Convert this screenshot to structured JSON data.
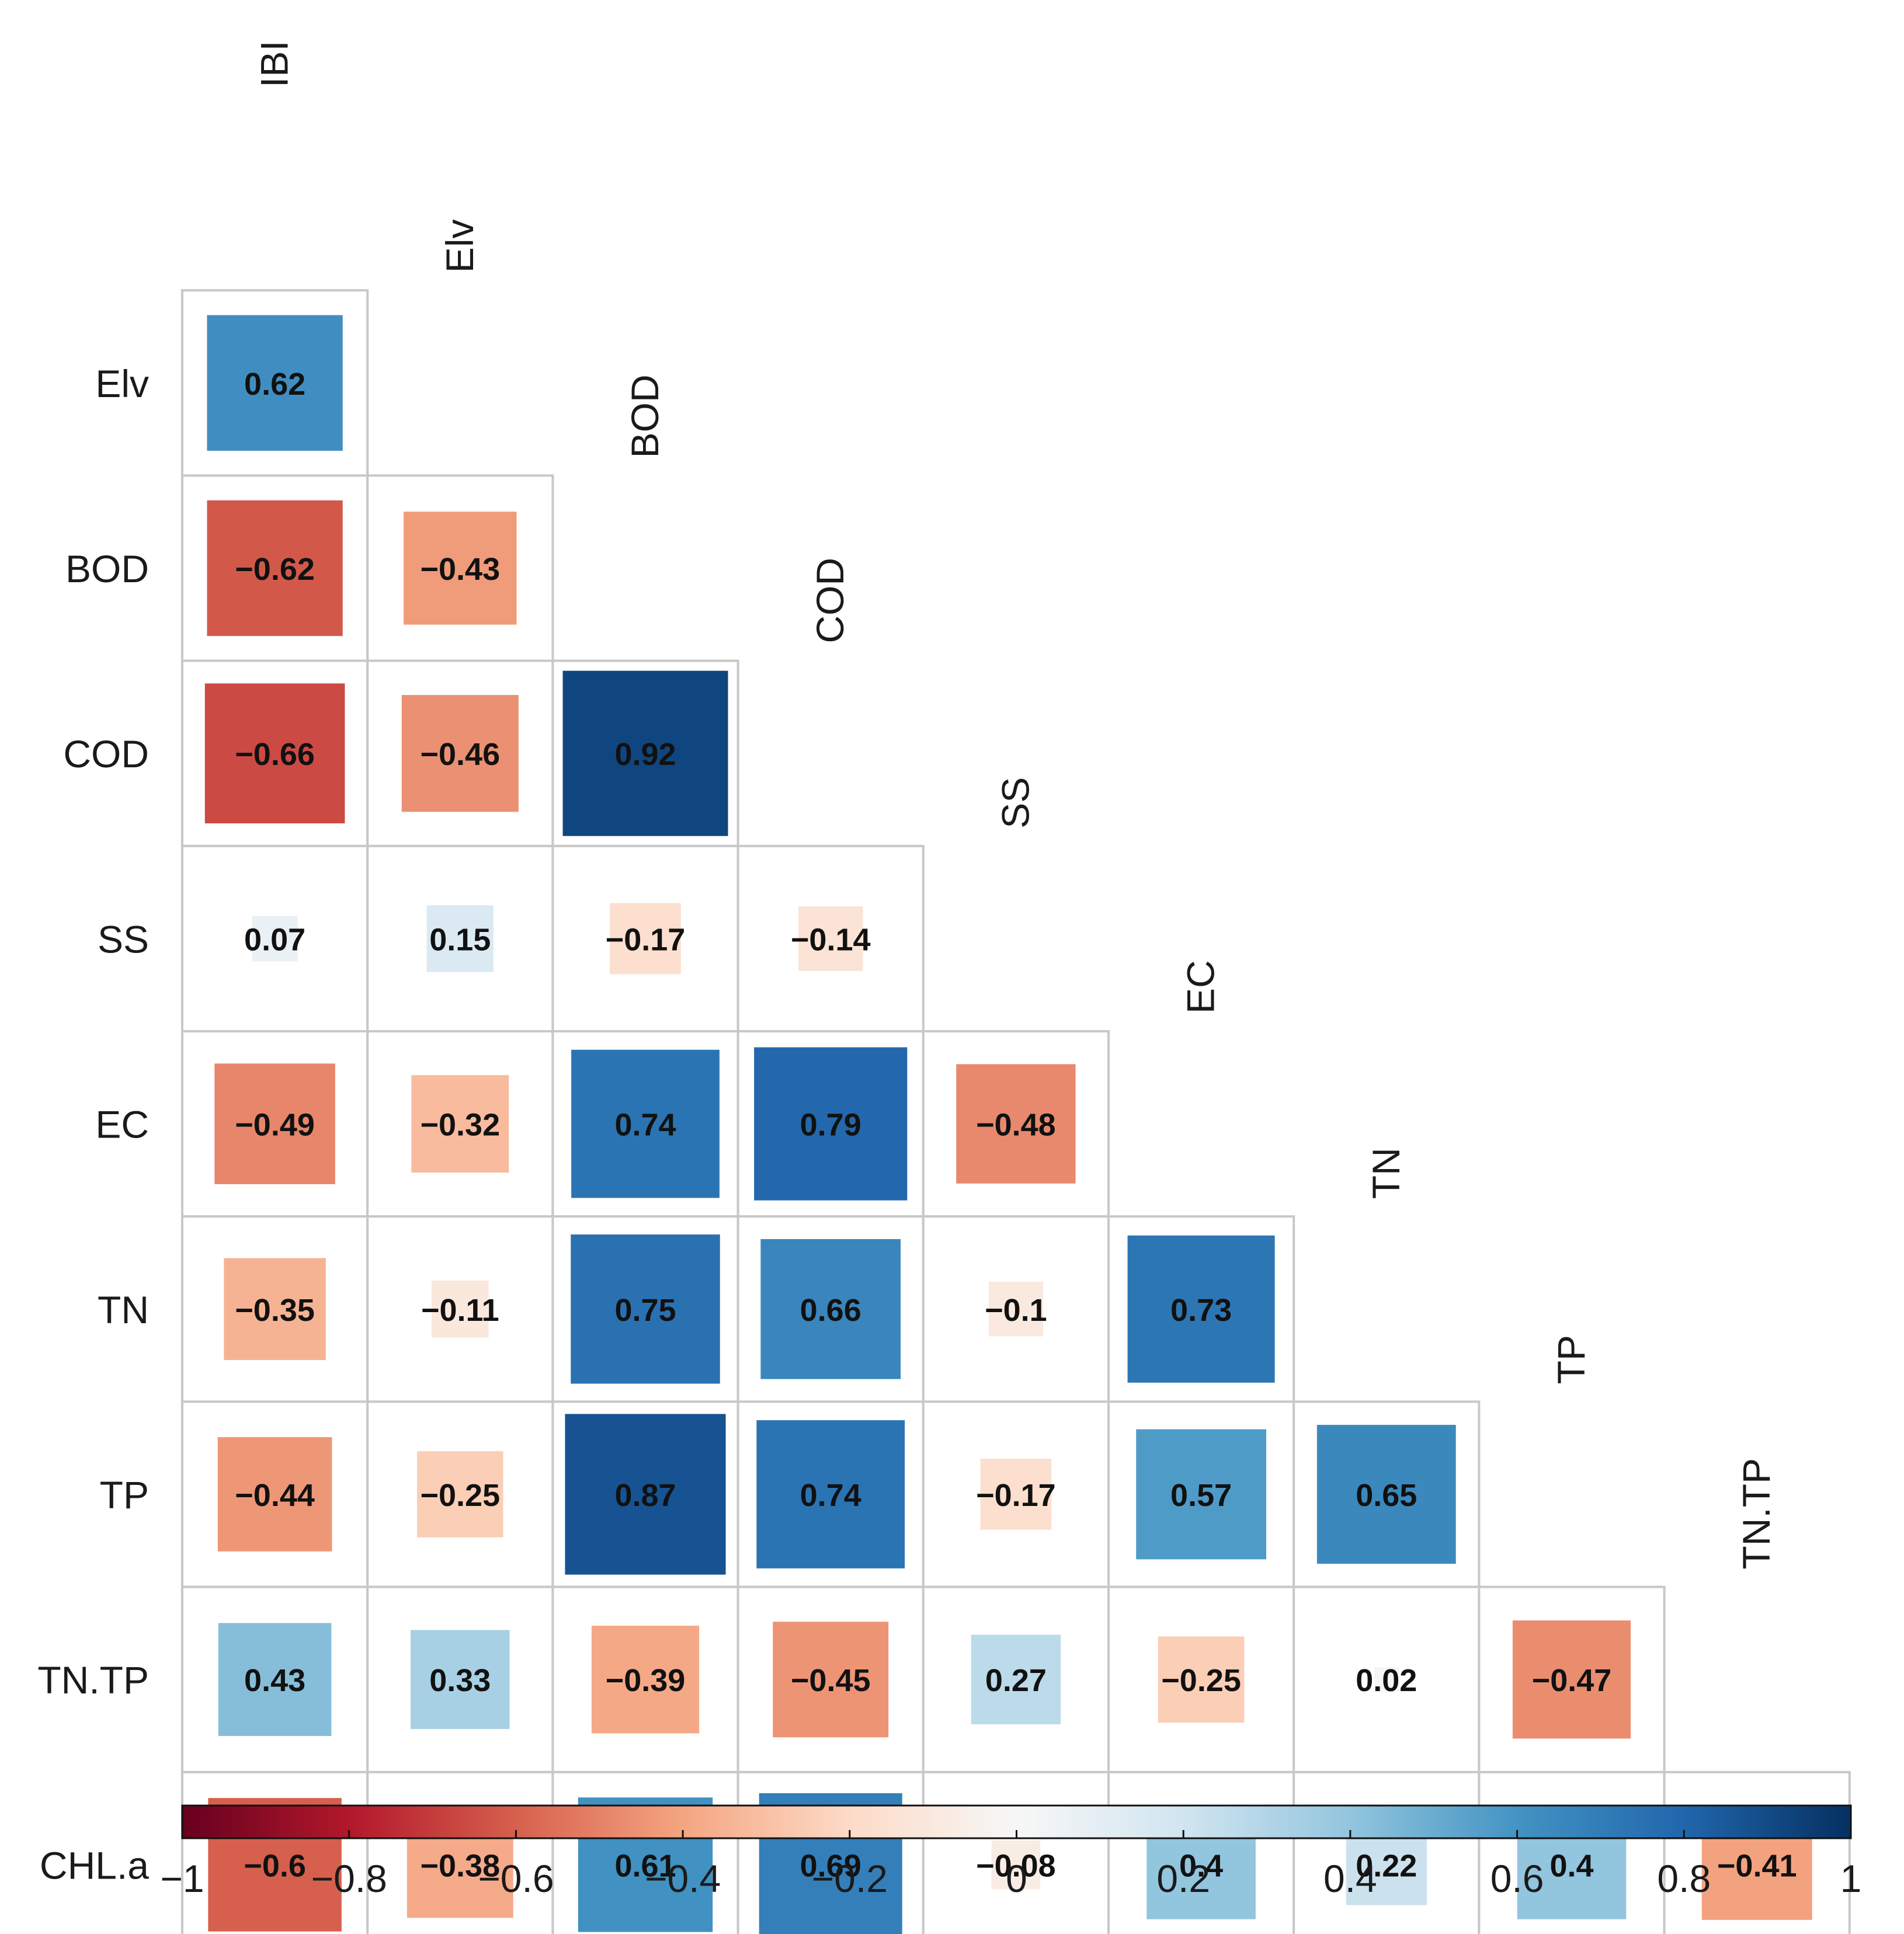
{
  "chart_data": {
    "type": "heatmap",
    "subtype": "correlation-matrix-lower-triangle",
    "variables": [
      "IBI",
      "Elv",
      "BOD",
      "COD",
      "SS",
      "EC",
      "TN",
      "TP",
      "TN.TP",
      "CHL.a"
    ],
    "row_labels": [
      "Elv",
      "BOD",
      "COD",
      "SS",
      "EC",
      "TN",
      "TP",
      "TN.TP",
      "CHL.a"
    ],
    "column_labels": [
      "IBI",
      "Elv",
      "BOD",
      "COD",
      "SS",
      "EC",
      "TN",
      "TP",
      "TN.TP"
    ],
    "values": [
      [
        0.62
      ],
      [
        -0.62,
        -0.43
      ],
      [
        -0.66,
        -0.46,
        0.92
      ],
      [
        0.07,
        0.15,
        -0.17,
        -0.14
      ],
      [
        -0.49,
        -0.32,
        0.74,
        0.79,
        -0.48
      ],
      [
        -0.35,
        -0.11,
        0.75,
        0.66,
        -0.1,
        0.73
      ],
      [
        -0.44,
        -0.25,
        0.87,
        0.74,
        -0.17,
        0.57,
        0.65
      ],
      [
        0.43,
        0.33,
        -0.39,
        -0.45,
        0.27,
        -0.25,
        0.02,
        -0.47
      ],
      [
        -0.6,
        -0.38,
        0.61,
        0.69,
        -0.08,
        0.4,
        0.22,
        0.4,
        -0.41
      ]
    ],
    "value_labels": [
      [
        "0.62"
      ],
      [
        "−0.62",
        "−0.43"
      ],
      [
        "−0.66",
        "−0.46",
        "0.92"
      ],
      [
        "0.07",
        "0.15",
        "−0.17",
        "−0.14"
      ],
      [
        "−0.49",
        "−0.32",
        "0.74",
        "0.79",
        "−0.48"
      ],
      [
        "−0.35",
        "−0.11",
        "0.75",
        "0.66",
        "−0.1",
        "0.73"
      ],
      [
        "−0.44",
        "−0.25",
        "0.87",
        "0.74",
        "−0.17",
        "0.57",
        "0.65"
      ],
      [
        "0.43",
        "0.33",
        "−0.39",
        "−0.45",
        "0.27",
        "−0.25",
        "0.02",
        "−0.47"
      ],
      [
        "−0.6",
        "−0.38",
        "0.61",
        "0.69",
        "−0.08",
        "0.4",
        "0.22",
        "0.4",
        "−0.41"
      ]
    ],
    "colorbar": {
      "range": [
        -1,
        1
      ],
      "ticks": [
        -1,
        -0.8,
        -0.6,
        -0.4,
        -0.2,
        0,
        0.2,
        0.4,
        0.6,
        0.8,
        1
      ],
      "tick_labels": [
        "−1",
        "−0.8",
        "−0.6",
        "−0.4",
        "−0.2",
        "0",
        "0.2",
        "0.4",
        "0.6",
        "0.8",
        "1"
      ],
      "colors": [
        "#67001f",
        "#b2182b",
        "#d6604d",
        "#f4a582",
        "#fddbc7",
        "#f7f7f7",
        "#d1e5f0",
        "#92c5de",
        "#4393c3",
        "#2166ac",
        "#053061"
      ],
      "placement": "bottom"
    },
    "grid": true
  }
}
